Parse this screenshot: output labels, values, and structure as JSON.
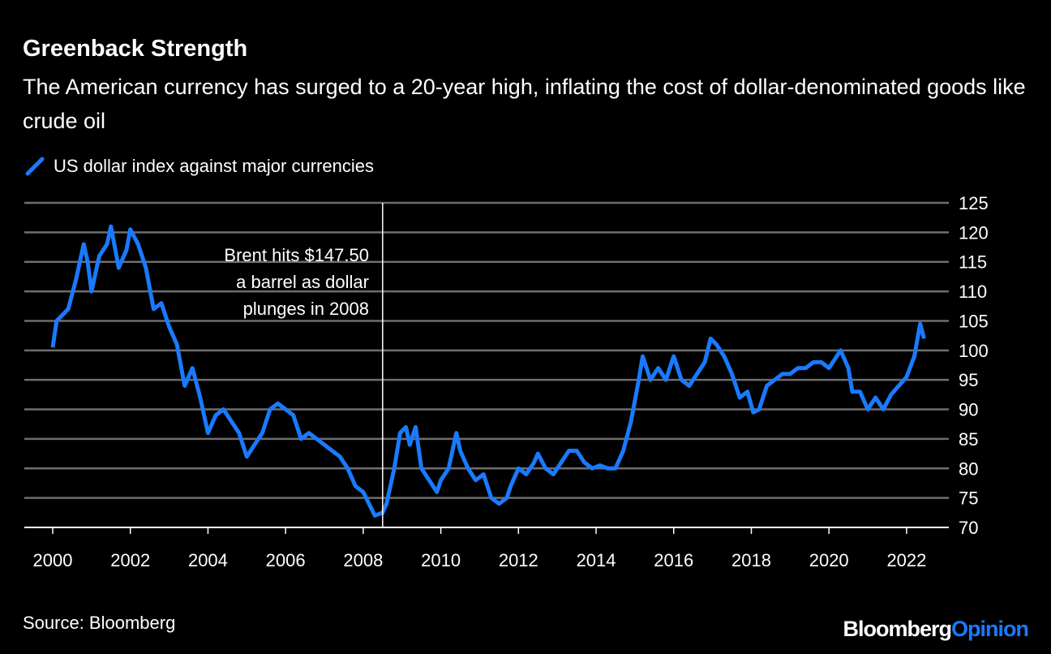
{
  "title": "Greenback Strength",
  "subtitle": "The American currency has surged to a 20-year high, inflating the cost of dollar-denominated goods like crude oil",
  "source": "Source: Bloomberg",
  "logo": {
    "part1": "Bloomberg",
    "part2": "Opinion"
  },
  "colors": {
    "series": "#1a7aff",
    "background": "#000000",
    "grid": "#6e6e6e"
  },
  "chart_data": {
    "type": "line",
    "title": "Greenback Strength",
    "xlabel": "",
    "ylabel": "",
    "xlim": [
      2000,
      2022.5
    ],
    "ylim": [
      70,
      125
    ],
    "yticks": [
      70,
      75,
      80,
      85,
      90,
      95,
      100,
      105,
      110,
      115,
      120,
      125
    ],
    "xticks": [
      2000,
      2002,
      2004,
      2006,
      2008,
      2010,
      2012,
      2014,
      2016,
      2018,
      2020,
      2022
    ],
    "y_axis_position": "right",
    "grid": true,
    "legend_position": "top-left",
    "series": [
      {
        "name": "US dollar index against major currencies",
        "color": "#1a7aff",
        "x": [
          2000.0,
          2000.1,
          2000.25,
          2000.4,
          2000.6,
          2000.8,
          2000.9,
          2001.0,
          2001.2,
          2001.4,
          2001.5,
          2001.7,
          2001.9,
          2002.0,
          2002.2,
          2002.4,
          2002.6,
          2002.8,
          2003.0,
          2003.2,
          2003.4,
          2003.6,
          2003.8,
          2004.0,
          2004.2,
          2004.4,
          2004.6,
          2004.8,
          2005.0,
          2005.2,
          2005.4,
          2005.6,
          2005.8,
          2006.0,
          2006.2,
          2006.4,
          2006.6,
          2006.8,
          2007.0,
          2007.2,
          2007.4,
          2007.6,
          2007.8,
          2008.0,
          2008.3,
          2008.5,
          2008.6,
          2008.8,
          2008.95,
          2009.1,
          2009.2,
          2009.35,
          2009.5,
          2009.7,
          2009.9,
          2010.0,
          2010.2,
          2010.4,
          2010.5,
          2010.7,
          2010.9,
          2011.1,
          2011.3,
          2011.5,
          2011.7,
          2011.8,
          2012.0,
          2012.2,
          2012.4,
          2012.5,
          2012.7,
          2012.9,
          2013.1,
          2013.3,
          2013.5,
          2013.7,
          2013.9,
          2014.1,
          2014.3,
          2014.5,
          2014.7,
          2014.9,
          2015.1,
          2015.2,
          2015.4,
          2015.6,
          2015.8,
          2016.0,
          2016.2,
          2016.4,
          2016.6,
          2016.8,
          2016.95,
          2017.1,
          2017.3,
          2017.5,
          2017.7,
          2017.9,
          2018.05,
          2018.2,
          2018.4,
          2018.6,
          2018.8,
          2019.0,
          2019.2,
          2019.4,
          2019.6,
          2019.8,
          2020.0,
          2020.2,
          2020.3,
          2020.5,
          2020.6,
          2020.8,
          2021.0,
          2021.2,
          2021.4,
          2021.6,
          2021.8,
          2022.0,
          2022.2,
          2022.35,
          2022.45
        ],
        "y": [
          100.5,
          105,
          106,
          107,
          112,
          118,
          115,
          110,
          116,
          118,
          121,
          114,
          117,
          120.5,
          118,
          114,
          107,
          108,
          104,
          101,
          94,
          97,
          92,
          86,
          89,
          90,
          88,
          86,
          82,
          84,
          86,
          90,
          91,
          90,
          89,
          85,
          86,
          85,
          84,
          83,
          82,
          80,
          77,
          76,
          72,
          72.5,
          74,
          80,
          86,
          87,
          84,
          87,
          80,
          78,
          76,
          78,
          80,
          86,
          83,
          80,
          78,
          79,
          75,
          74,
          75,
          77,
          80,
          79,
          81,
          82.5,
          80,
          79,
          81,
          83,
          83,
          81,
          80,
          80.5,
          80,
          80,
          83,
          88,
          95,
          99,
          95,
          97,
          95,
          99,
          95,
          94,
          96,
          98,
          102,
          101,
          99,
          96,
          92,
          93,
          89.5,
          90,
          94,
          95,
          96,
          96,
          97,
          97,
          98,
          98,
          97,
          99,
          100,
          97,
          93,
          93,
          90,
          92,
          90,
          92.5,
          94,
          95.5,
          99,
          104.5,
          102
        ]
      }
    ],
    "annotations": [
      {
        "x": 2008.5,
        "lines": [
          "Brent hits $147.50",
          "a barrel as dollar",
          "plunges in 2008"
        ]
      }
    ]
  }
}
